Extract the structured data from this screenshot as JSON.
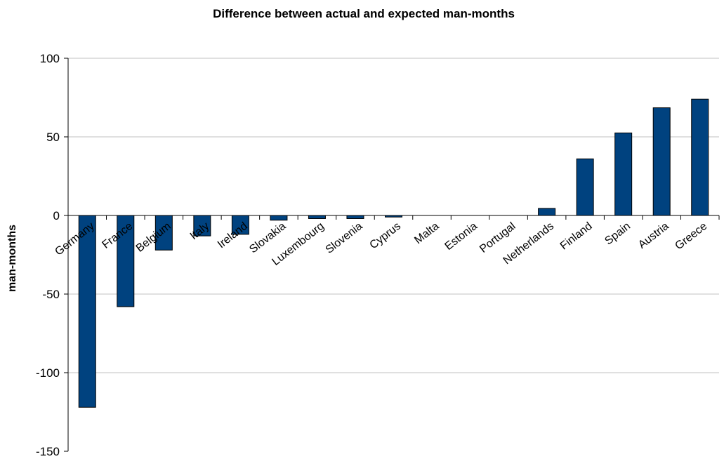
{
  "chart_data": {
    "type": "bar",
    "title": "Difference between actual and expected man-months",
    "xlabel": "",
    "ylabel": "man-months",
    "ylim": [
      -150,
      100
    ],
    "yticks": [
      100,
      50,
      0,
      -50,
      -100,
      -150
    ],
    "grid": true,
    "legend": "none",
    "categories": [
      "Germany",
      "France",
      "Belgium",
      "Italy",
      "Ireland",
      "Slovakia",
      "Luxembourg",
      "Slovenia",
      "Cyprus",
      "Malta",
      "Estonia",
      "Portugal",
      "Netherlands",
      "Finland",
      "Spain",
      "Austria",
      "Greece"
    ],
    "values": [
      -122,
      -58,
      -22,
      -13,
      -12,
      -3,
      -2,
      -2,
      -1,
      0,
      0,
      0,
      4.5,
      36,
      52.5,
      68.5,
      74
    ],
    "colors": {
      "bar": "#00427f",
      "bar_outline": "#000000",
      "grid": "#c0c0c0",
      "axis": "#000000"
    }
  }
}
